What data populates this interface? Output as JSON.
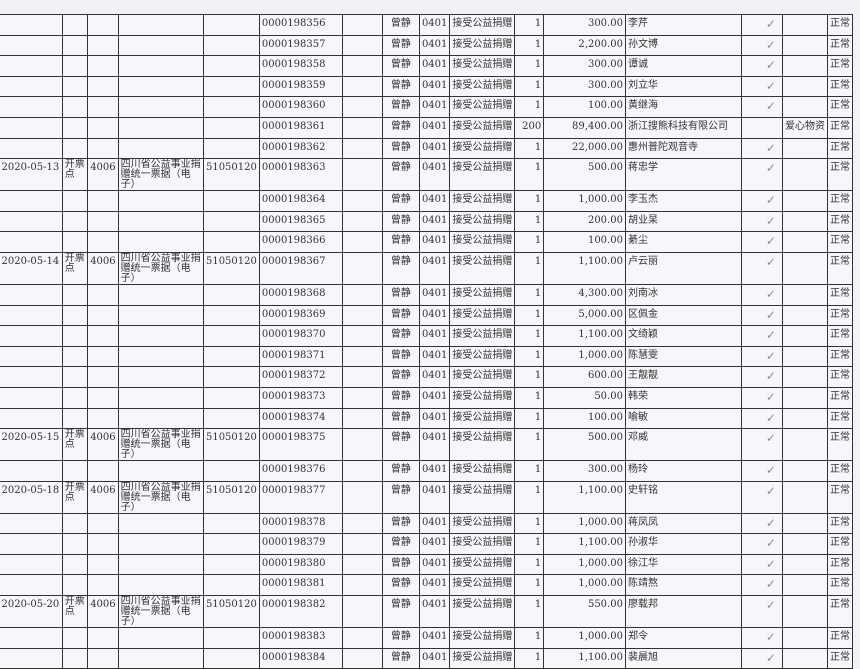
{
  "colors": {
    "check": "#8a8f98",
    "border": "#333333"
  },
  "rows": [
    {
      "date": "",
      "point": "",
      "code": "",
      "type": "",
      "org": "",
      "no": "0000198356",
      "op": "曾静",
      "sub": "0401",
      "item": "接受公益捐赠",
      "qty": "1",
      "amount": "300.00",
      "donor": "李芹",
      "check": "✓",
      "note": "",
      "status": "正常"
    },
    {
      "date": "",
      "point": "",
      "code": "",
      "type": "",
      "org": "",
      "no": "0000198357",
      "op": "曾静",
      "sub": "0401",
      "item": "接受公益捐赠",
      "qty": "1",
      "amount": "2,200.00",
      "donor": "孙文博",
      "check": "✓",
      "note": "",
      "status": "正常"
    },
    {
      "date": "",
      "point": "",
      "code": "",
      "type": "",
      "org": "",
      "no": "0000198358",
      "op": "曾静",
      "sub": "0401",
      "item": "接受公益捐赠",
      "qty": "1",
      "amount": "300.00",
      "donor": "谭诚",
      "check": "✓",
      "note": "",
      "status": "正常"
    },
    {
      "date": "",
      "point": "",
      "code": "",
      "type": "",
      "org": "",
      "no": "0000198359",
      "op": "曾静",
      "sub": "0401",
      "item": "接受公益捐赠",
      "qty": "1",
      "amount": "300.00",
      "donor": "刘立华",
      "check": "✓",
      "note": "",
      "status": "正常"
    },
    {
      "date": "",
      "point": "",
      "code": "",
      "type": "",
      "org": "",
      "no": "0000198360",
      "op": "曾静",
      "sub": "0401",
      "item": "接受公益捐赠",
      "qty": "1",
      "amount": "100.00",
      "donor": "黄继海",
      "check": "✓",
      "note": "",
      "status": "正常"
    },
    {
      "date": "",
      "point": "",
      "code": "",
      "type": "",
      "org": "",
      "no": "0000198361",
      "op": "曾静",
      "sub": "0401",
      "item": "接受公益捐赠",
      "qty": "200",
      "amount": "89,400.00",
      "donor": "浙江搜熊科技有限公司",
      "check": "",
      "note": "爱心物资",
      "status": "正常"
    },
    {
      "date": "",
      "point": "",
      "code": "",
      "type": "",
      "org": "",
      "no": "0000198362",
      "op": "曾静",
      "sub": "0401",
      "item": "接受公益捐赠",
      "qty": "1",
      "amount": "22,000.00",
      "donor": "惠州普陀观音寺",
      "check": "✓",
      "note": "",
      "status": "正常"
    },
    {
      "date": "2020-05-13",
      "point": "开票点",
      "code": "4006",
      "type": "四川省公益事业捐赠统一票据（电子）",
      "org": "51050120",
      "no": "0000198363",
      "op": "曾静",
      "sub": "0401",
      "item": "接受公益捐赠",
      "qty": "1",
      "amount": "500.00",
      "donor": "蒋忠学",
      "check": "✓",
      "note": "",
      "status": "正常"
    },
    {
      "date": "",
      "point": "",
      "code": "",
      "type": "",
      "org": "",
      "no": "0000198364",
      "op": "曾静",
      "sub": "0401",
      "item": "接受公益捐赠",
      "qty": "1",
      "amount": "1,000.00",
      "donor": "李玉杰",
      "check": "✓",
      "note": "",
      "status": "正常"
    },
    {
      "date": "",
      "point": "",
      "code": "",
      "type": "",
      "org": "",
      "no": "0000198365",
      "op": "曾静",
      "sub": "0401",
      "item": "接受公益捐赠",
      "qty": "1",
      "amount": "200.00",
      "donor": "胡业杲",
      "check": "✓",
      "note": "",
      "status": "正常"
    },
    {
      "date": "",
      "point": "",
      "code": "",
      "type": "",
      "org": "",
      "no": "0000198366",
      "op": "曾静",
      "sub": "0401",
      "item": "接受公益捐赠",
      "qty": "1",
      "amount": "100.00",
      "donor": "綦尘",
      "check": "✓",
      "note": "",
      "status": "正常"
    },
    {
      "date": "2020-05-14",
      "point": "开票点",
      "code": "4006",
      "type": "四川省公益事业捐赠统一票据（电子）",
      "org": "51050120",
      "no": "0000198367",
      "op": "曾静",
      "sub": "0401",
      "item": "接受公益捐赠",
      "qty": "1",
      "amount": "1,100.00",
      "donor": "卢云丽",
      "check": "✓",
      "note": "",
      "status": "正常"
    },
    {
      "date": "",
      "point": "",
      "code": "",
      "type": "",
      "org": "",
      "no": "0000198368",
      "op": "曾静",
      "sub": "0401",
      "item": "接受公益捐赠",
      "qty": "1",
      "amount": "4,300.00",
      "donor": "刘南冰",
      "check": "✓",
      "note": "",
      "status": "正常"
    },
    {
      "date": "",
      "point": "",
      "code": "",
      "type": "",
      "org": "",
      "no": "0000198369",
      "op": "曾静",
      "sub": "0401",
      "item": "接受公益捐赠",
      "qty": "1",
      "amount": "5,000.00",
      "donor": "区佩金",
      "check": "✓",
      "note": "",
      "status": "正常"
    },
    {
      "date": "",
      "point": "",
      "code": "",
      "type": "",
      "org": "",
      "no": "0000198370",
      "op": "曾静",
      "sub": "0401",
      "item": "接受公益捐赠",
      "qty": "1",
      "amount": "1,100.00",
      "donor": "文绮颖",
      "check": "✓",
      "note": "",
      "status": "正常"
    },
    {
      "date": "",
      "point": "",
      "code": "",
      "type": "",
      "org": "",
      "no": "0000198371",
      "op": "曾静",
      "sub": "0401",
      "item": "接受公益捐赠",
      "qty": "1",
      "amount": "1,000.00",
      "donor": "陈慧雯",
      "check": "✓",
      "note": "",
      "status": "正常"
    },
    {
      "date": "",
      "point": "",
      "code": "",
      "type": "",
      "org": "",
      "no": "0000198372",
      "op": "曾静",
      "sub": "0401",
      "item": "接受公益捐赠",
      "qty": "1",
      "amount": "600.00",
      "donor": "王靓靓",
      "check": "✓",
      "note": "",
      "status": "正常"
    },
    {
      "date": "",
      "point": "",
      "code": "",
      "type": "",
      "org": "",
      "no": "0000198373",
      "op": "曾静",
      "sub": "0401",
      "item": "接受公益捐赠",
      "qty": "1",
      "amount": "50.00",
      "donor": "韩荣",
      "check": "✓",
      "note": "",
      "status": "正常"
    },
    {
      "date": "",
      "point": "",
      "code": "",
      "type": "",
      "org": "",
      "no": "0000198374",
      "op": "曾静",
      "sub": "0401",
      "item": "接受公益捐赠",
      "qty": "1",
      "amount": "100.00",
      "donor": "喻敏",
      "check": "✓",
      "note": "",
      "status": "正常"
    },
    {
      "date": "2020-05-15",
      "point": "开票点",
      "code": "4006",
      "type": "四川省公益事业捐赠统一票据（电子）",
      "org": "51050120",
      "no": "0000198375",
      "op": "曾静",
      "sub": "0401",
      "item": "接受公益捐赠",
      "qty": "1",
      "amount": "500.00",
      "donor": "邓威",
      "check": "✓",
      "note": "",
      "status": "正常"
    },
    {
      "date": "",
      "point": "",
      "code": "",
      "type": "",
      "org": "",
      "no": "0000198376",
      "op": "曾静",
      "sub": "0401",
      "item": "接受公益捐赠",
      "qty": "1",
      "amount": "300.00",
      "donor": "杨玲",
      "check": "✓",
      "note": "",
      "status": "正常"
    },
    {
      "date": "2020-05-18",
      "point": "开票点",
      "code": "4006",
      "type": "四川省公益事业捐赠统一票据（电子）",
      "org": "51050120",
      "no": "0000198377",
      "op": "曾静",
      "sub": "0401",
      "item": "接受公益捐赠",
      "qty": "1",
      "amount": "1,100.00",
      "donor": "史轩铭",
      "check": "✓",
      "note": "",
      "status": "正常"
    },
    {
      "date": "",
      "point": "",
      "code": "",
      "type": "",
      "org": "",
      "no": "0000198378",
      "op": "曾静",
      "sub": "0401",
      "item": "接受公益捐赠",
      "qty": "1",
      "amount": "1,000.00",
      "donor": "蒋凤凤",
      "check": "✓",
      "note": "",
      "status": "正常"
    },
    {
      "date": "",
      "point": "",
      "code": "",
      "type": "",
      "org": "",
      "no": "0000198379",
      "op": "曾静",
      "sub": "0401",
      "item": "接受公益捐赠",
      "qty": "1",
      "amount": "1,100.00",
      "donor": "孙淑华",
      "check": "✓",
      "note": "",
      "status": "正常"
    },
    {
      "date": "",
      "point": "",
      "code": "",
      "type": "",
      "org": "",
      "no": "0000198380",
      "op": "曾静",
      "sub": "0401",
      "item": "接受公益捐赠",
      "qty": "1",
      "amount": "1,000.00",
      "donor": "徐江华",
      "check": "✓",
      "note": "",
      "status": "正常"
    },
    {
      "date": "",
      "point": "",
      "code": "",
      "type": "",
      "org": "",
      "no": "0000198381",
      "op": "曾静",
      "sub": "0401",
      "item": "接受公益捐赠",
      "qty": "1",
      "amount": "1,000.00",
      "donor": "陈靖熬",
      "check": "✓",
      "note": "",
      "status": "正常"
    },
    {
      "date": "2020-05-20",
      "point": "开票点",
      "code": "4006",
      "type": "四川省公益事业捐赠统一票据（电子）",
      "org": "51050120",
      "no": "0000198382",
      "op": "曾静",
      "sub": "0401",
      "item": "接受公益捐赠",
      "qty": "1",
      "amount": "550.00",
      "donor": "廖载邦",
      "check": "✓",
      "note": "",
      "status": "正常"
    },
    {
      "date": "",
      "point": "",
      "code": "",
      "type": "",
      "org": "",
      "no": "0000198383",
      "op": "曾静",
      "sub": "0401",
      "item": "接受公益捐赠",
      "qty": "1",
      "amount": "1,000.00",
      "donor": "郑令",
      "check": "✓",
      "note": "",
      "status": "正常"
    },
    {
      "date": "",
      "point": "",
      "code": "",
      "type": "",
      "org": "",
      "no": "0000198384",
      "op": "曾静",
      "sub": "0401",
      "item": "接受公益捐赠",
      "qty": "1",
      "amount": "1,100.00",
      "donor": "裴晨旭",
      "check": "✓",
      "note": "",
      "status": "正常"
    }
  ]
}
